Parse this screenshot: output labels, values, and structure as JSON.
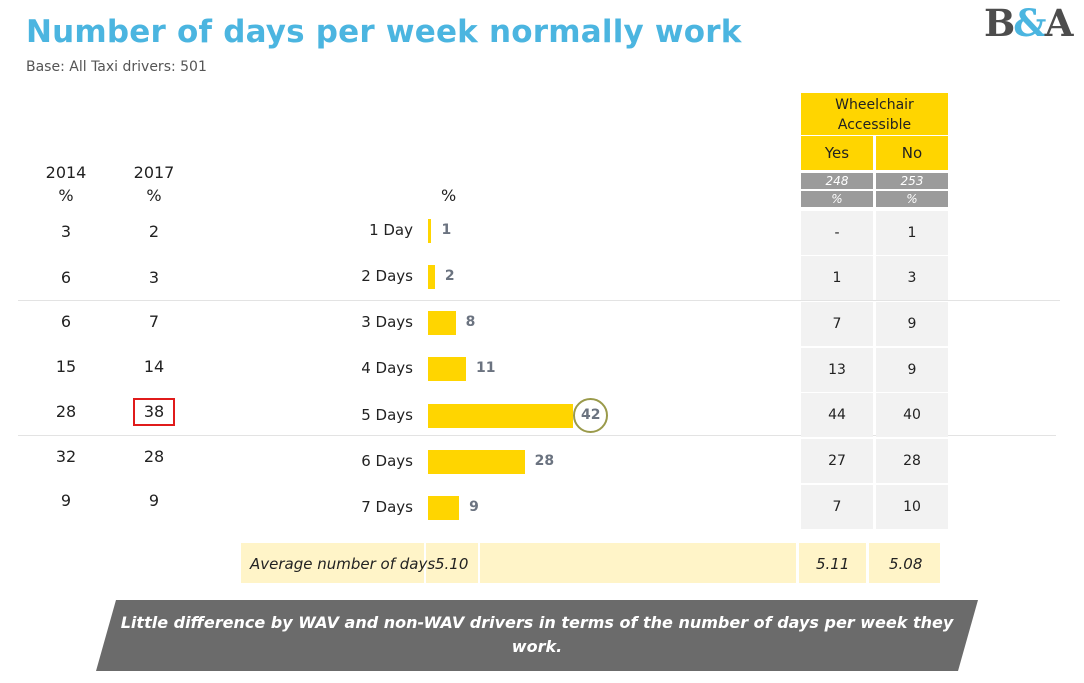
{
  "title": "Number of days per week normally work",
  "base": "Base: All Taxi drivers: 501",
  "logo": {
    "left": "B",
    "amp": "&",
    "right": "A"
  },
  "trend": {
    "year1": "2014",
    "year2": "2017",
    "unit": "%",
    "v2014": [
      "3",
      "6",
      "6",
      "15",
      "28",
      "32",
      "9"
    ],
    "v2017": [
      "2",
      "3",
      "7",
      "14",
      "38",
      "28",
      "9"
    ]
  },
  "chart_data": {
    "type": "bar",
    "orientation": "horizontal",
    "unit_label": "%",
    "categories": [
      "1 Day",
      "2 Days",
      "3 Days",
      "4 Days",
      "5 Days",
      "6 Days",
      "7 Days"
    ],
    "values": [
      1,
      2,
      8,
      11,
      42,
      28,
      9
    ],
    "highlighted": "5 Days",
    "xlim": [
      0,
      42
    ]
  },
  "wav": {
    "header": "Wheelchair Accessible",
    "yes_label": "Yes",
    "no_label": "No",
    "yes_base": "248",
    "no_base": "253",
    "unit": "%",
    "yes": [
      "-",
      "1",
      "7",
      "13",
      "44",
      "27",
      "7"
    ],
    "no": [
      "1",
      "3",
      "9",
      "9",
      "40",
      "28",
      "10"
    ]
  },
  "average": {
    "label": "Average number of days",
    "total": "5.10",
    "yes": "5.11",
    "no": "5.08"
  },
  "banner": "Little difference by WAV and non-WAV drivers in terms of the number of days per week they work.",
  "colors": {
    "accent": "#ffd500",
    "title": "#4bb5e0",
    "banner": "#6b6b6b",
    "highlight": "#e01b1b"
  }
}
